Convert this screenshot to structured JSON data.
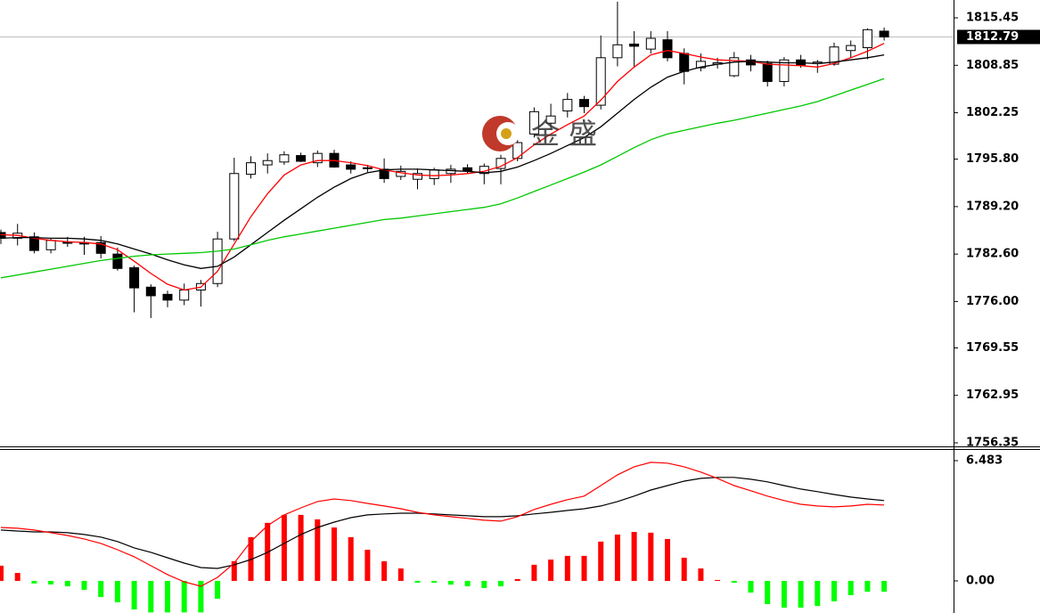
{
  "chart_data": [
    {
      "type": "candlestick",
      "open": [
        1785.6,
        1784.8,
        1785.0,
        1783.2,
        1784.3,
        1784.2,
        1784.2,
        1782.6,
        1780.7,
        1778.0,
        1777.0,
        1776.2,
        1777.6,
        1778.5,
        1784.7,
        1793.7,
        1795.0,
        1795.4,
        1796.3,
        1795.3,
        1796.6,
        1795.0,
        1794.5,
        1794.4,
        1793.4,
        1793.0,
        1793.1,
        1793.8,
        1794.6,
        1793.8,
        1794.5,
        1795.9,
        1799.3,
        1800.8,
        1802.5,
        1804.1,
        1803.3,
        1809.9,
        1811.8,
        1811.1,
        1812.4,
        1810.5,
        1808.5,
        1809.0,
        1807.4,
        1809.6,
        1809.1,
        1806.6,
        1809.6,
        1809.1,
        1809.0,
        1810.9,
        1811.3,
        1813.6
      ],
      "high": [
        1786.0,
        1786.8,
        1785.6,
        1784.8,
        1785.0,
        1785.0,
        1785.1,
        1783.5,
        1781.0,
        1778.4,
        1777.5,
        1778.5,
        1779.0,
        1785.7,
        1796.0,
        1796.2,
        1796.6,
        1796.9,
        1796.7,
        1797.0,
        1797.1,
        1795.5,
        1795.0,
        1795.9,
        1794.9,
        1794.5,
        1794.6,
        1795.0,
        1795.1,
        1795.2,
        1796.4,
        1800.0,
        1803.0,
        1803.5,
        1805.0,
        1804.6,
        1813.0,
        1817.7,
        1813.6,
        1813.6,
        1813.6,
        1811.2,
        1810.5,
        1809.9,
        1810.7,
        1810.3,
        1809.5,
        1810.0,
        1810.3,
        1809.6,
        1812.0,
        1812.3,
        1814.0,
        1814.1
      ],
      "low": [
        1784.0,
        1783.8,
        1782.7,
        1782.7,
        1783.6,
        1782.5,
        1782.0,
        1780.3,
        1774.5,
        1773.7,
        1775.2,
        1775.5,
        1775.3,
        1778.0,
        1784.4,
        1793.1,
        1793.8,
        1795.0,
        1795.4,
        1794.7,
        1794.6,
        1793.8,
        1794.0,
        1792.5,
        1792.9,
        1791.6,
        1792.2,
        1792.5,
        1793.8,
        1792.3,
        1792.3,
        1795.5,
        1798.8,
        1800.0,
        1801.6,
        1802.2,
        1802.7,
        1808.7,
        1808.6,
        1810.5,
        1809.4,
        1806.2,
        1808.0,
        1808.4,
        1807.2,
        1808.0,
        1805.9,
        1805.9,
        1808.5,
        1807.8,
        1808.8,
        1809.9,
        1809.7,
        1812.3
      ],
      "close": [
        1784.8,
        1785.5,
        1783.1,
        1784.5,
        1784.1,
        1784.0,
        1782.7,
        1780.6,
        1777.9,
        1776.8,
        1776.2,
        1777.6,
        1778.5,
        1784.7,
        1793.8,
        1795.3,
        1795.6,
        1796.4,
        1795.5,
        1796.6,
        1794.7,
        1794.4,
        1794.6,
        1793.1,
        1794.1,
        1793.8,
        1794.3,
        1794.4,
        1794.2,
        1794.8,
        1795.9,
        1798.1,
        1802.4,
        1801.8,
        1804.1,
        1803.1,
        1809.9,
        1811.7,
        1811.5,
        1812.6,
        1809.9,
        1808.0,
        1809.4,
        1809.2,
        1809.9,
        1808.9,
        1806.6,
        1809.6,
        1808.9,
        1809.3,
        1811.4,
        1811.6,
        1813.8,
        1812.79
      ],
      "up_color": "#ffffff",
      "down_color": "#000000",
      "candle_edge": "#000000",
      "series": [
        {
          "color": "#ff0000",
          "values": [
            1785.3,
            1785.2,
            1784.8,
            1784.5,
            1784.3,
            1784.2,
            1784.0,
            1783.2,
            1781.6,
            1779.9,
            1778.4,
            1777.6,
            1778.0,
            1780.2,
            1784.0,
            1787.8,
            1791.0,
            1793.6,
            1795.0,
            1795.6,
            1795.6,
            1795.3,
            1794.9,
            1794.3,
            1793.9,
            1793.6,
            1793.5,
            1793.6,
            1793.8,
            1794.1,
            1794.8,
            1796.0,
            1797.8,
            1799.3,
            1800.6,
            1801.8,
            1804.0,
            1806.6,
            1808.6,
            1810.3,
            1810.9,
            1810.5,
            1810.0,
            1809.6,
            1809.5,
            1809.4,
            1809.0,
            1808.9,
            1808.8,
            1808.6,
            1809.1,
            1809.9,
            1810.8,
            1811.9
          ]
        },
        {
          "color": "#000000",
          "values": [
            1784.8,
            1784.9,
            1784.9,
            1784.8,
            1784.8,
            1784.7,
            1784.5,
            1784.0,
            1783.3,
            1782.6,
            1781.8,
            1781.1,
            1780.6,
            1780.9,
            1782.2,
            1783.9,
            1785.6,
            1787.3,
            1788.9,
            1790.5,
            1791.9,
            1793.1,
            1793.9,
            1794.3,
            1794.4,
            1794.4,
            1794.3,
            1794.2,
            1794.1,
            1793.9,
            1794.1,
            1794.7,
            1795.6,
            1796.6,
            1797.7,
            1798.8,
            1800.3,
            1802.2,
            1804.1,
            1805.8,
            1807.2,
            1808.0,
            1808.6,
            1809.0,
            1809.3,
            1809.4,
            1809.3,
            1809.2,
            1809.2,
            1809.1,
            1809.3,
            1809.6,
            1809.9,
            1810.3
          ]
        },
        {
          "color": "#00c800",
          "values": [
            1779.3,
            1779.7,
            1780.1,
            1780.5,
            1780.9,
            1781.3,
            1781.7,
            1782.0,
            1782.3,
            1782.5,
            1782.6,
            1782.7,
            1782.8,
            1783.0,
            1783.3,
            1783.9,
            1784.5,
            1785.0,
            1785.4,
            1785.8,
            1786.2,
            1786.6,
            1787.0,
            1787.4,
            1787.6,
            1787.9,
            1788.2,
            1788.5,
            1788.8,
            1789.1,
            1789.6,
            1790.4,
            1791.3,
            1792.2,
            1793.1,
            1794.0,
            1795.0,
            1796.2,
            1797.4,
            1798.5,
            1799.3,
            1799.8,
            1800.3,
            1800.8,
            1801.2,
            1801.7,
            1802.2,
            1802.7,
            1803.2,
            1803.8,
            1804.6,
            1805.4,
            1806.2,
            1807.0
          ]
        }
      ],
      "ylim": [
        1755.98,
        1817.93
      ],
      "yticks": [
        1815.45,
        1808.85,
        1802.25,
        {
          "value": 1795.8,
          "label": "1795.80"
        },
        {
          "value": 1789.2,
          "label": "1789.20"
        },
        {
          "value": 1782.6,
          "label": "1782.60"
        },
        {
          "value": 1776,
          "label": "1776.00"
        },
        1769.55,
        1762.95,
        1756.35
      ],
      "current_price": 1812.79,
      "current_price_color": "#c0c0c0",
      "logo_text": "金盛"
    },
    {
      "type": "macd",
      "values": [
        0.82,
        0.43,
        -0.14,
        -0.19,
        -0.29,
        -0.48,
        -0.87,
        -1.15,
        -1.54,
        -1.7,
        -1.7,
        -1.7,
        -1.7,
        -0.96,
        1.06,
        2.36,
        3.13,
        3.56,
        3.56,
        3.32,
        2.88,
        2.36,
        1.68,
        1.06,
        0.67,
        -0.1,
        -0.1,
        -0.2,
        -0.29,
        -0.38,
        -0.29,
        0.1,
        0.87,
        1.15,
        1.35,
        1.35,
        2.12,
        2.5,
        2.64,
        2.6,
        2.26,
        1.25,
        0.67,
        0.05,
        -0.1,
        -0.63,
        -1.25,
        -1.44,
        -1.44,
        -1.35,
        -1.1,
        -0.77,
        -0.58,
        -0.58
      ],
      "bar_colors": [
        "#ff0000",
        "#ff0000",
        "#00ff00",
        "#00ff00",
        "#00ff00",
        "#00ff00",
        "#00ff00",
        "#00ff00",
        "#00ff00",
        "#00ff00",
        "#00ff00",
        "#00ff00",
        "#00ff00",
        "#00ff00",
        "#ff0000",
        "#ff0000",
        "#ff0000",
        "#ff0000",
        "#ff0000",
        "#ff0000",
        "#ff0000",
        "#ff0000",
        "#ff0000",
        "#ff0000",
        "#ff0000",
        "#00ff00",
        "#00ff00",
        "#00ff00",
        "#00ff00",
        "#00ff00",
        "#00ff00",
        "#ff0000",
        "#ff0000",
        "#ff0000",
        "#ff0000",
        "#ff0000",
        "#ff0000",
        "#ff0000",
        "#ff0000",
        "#ff0000",
        "#ff0000",
        "#ff0000",
        "#ff0000",
        "#ff0000",
        "#00ff00",
        "#00ff00",
        "#00ff00",
        "#00ff00",
        "#00ff00",
        "#00ff00",
        "#00ff00",
        "#00ff00",
        "#00ff00",
        "#00ff00"
      ],
      "series": [
        {
          "color": "#000000",
          "values": [
            2.74,
            2.69,
            2.64,
            2.64,
            2.6,
            2.5,
            2.36,
            2.12,
            1.78,
            1.54,
            1.25,
            0.96,
            0.72,
            0.67,
            0.87,
            1.15,
            1.54,
            2.02,
            2.5,
            2.88,
            3.17,
            3.41,
            3.56,
            3.61,
            3.65,
            3.65,
            3.61,
            3.56,
            3.51,
            3.46,
            3.46,
            3.51,
            3.61,
            3.7,
            3.8,
            3.89,
            4.04,
            4.28,
            4.57,
            4.9,
            5.14,
            5.38,
            5.53,
            5.58,
            5.58,
            5.48,
            5.34,
            5.14,
            4.95,
            4.81,
            4.66,
            4.52,
            4.42,
            4.33
          ]
        },
        {
          "color": "#ff0000",
          "values": [
            2.88,
            2.84,
            2.74,
            2.6,
            2.45,
            2.26,
            2.02,
            1.68,
            1.3,
            0.82,
            0.34,
            -0.05,
            -0.29,
            0.19,
            0.96,
            2.12,
            2.98,
            3.56,
            3.94,
            4.28,
            4.42,
            4.33,
            4.18,
            4.04,
            3.89,
            3.7,
            3.56,
            3.46,
            3.37,
            3.27,
            3.22,
            3.46,
            3.85,
            4.13,
            4.38,
            4.57,
            5.14,
            5.72,
            6.15,
            6.39,
            6.35,
            6.15,
            5.87,
            5.53,
            5.14,
            4.86,
            4.57,
            4.33,
            4.13,
            4.04,
            3.99,
            4.04,
            4.13,
            4.09
          ]
        }
      ],
      "ylim": [
        -1.73,
        7.06
      ],
      "yticks": [
        6.483,
        {
          "value": 0,
          "label": "0.00"
        }
      ]
    }
  ]
}
